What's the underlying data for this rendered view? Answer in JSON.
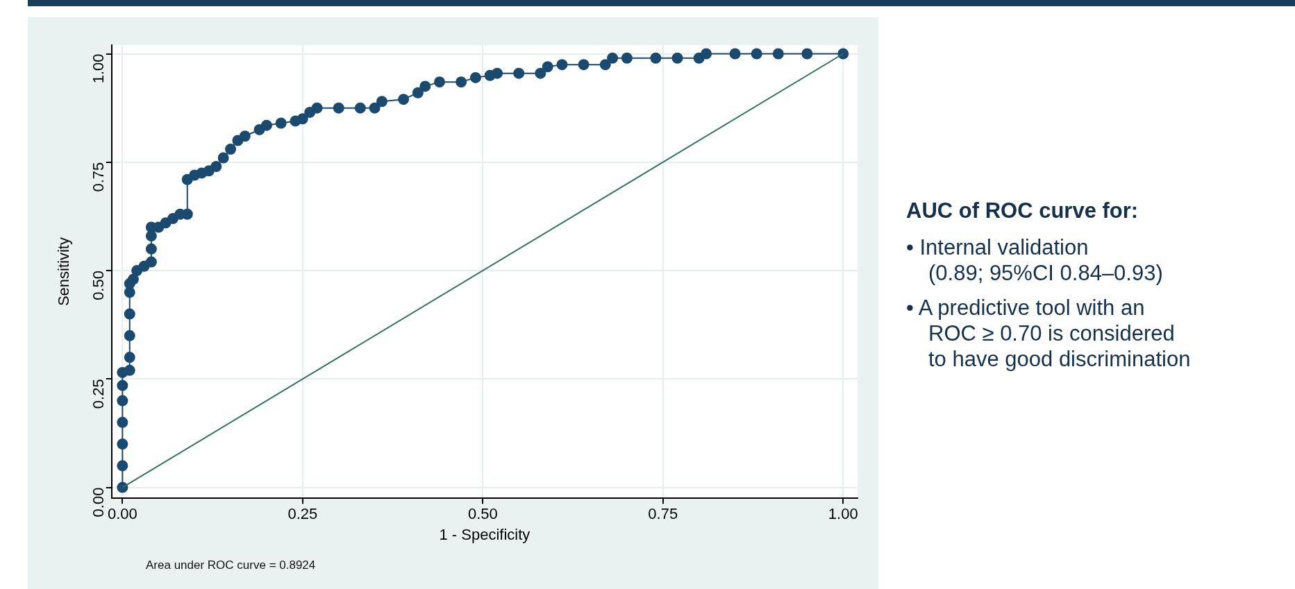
{
  "chart_data": {
    "type": "line",
    "xlabel": "1 - Specificity",
    "ylabel": "Sensitivity",
    "xlim": [
      -0.015,
      1.02
    ],
    "ylim": [
      -0.025,
      1.02
    ],
    "xticks": [
      {
        "value": 0,
        "label": "0.00"
      },
      {
        "value": 0.25,
        "label": "0.25"
      },
      {
        "value": 0.5,
        "label": "0.50"
      },
      {
        "value": 0.75,
        "label": "0.75"
      },
      {
        "value": 1,
        "label": "1.00"
      }
    ],
    "yticks": [
      {
        "value": 0,
        "label": "0.00"
      },
      {
        "value": 0.25,
        "label": "0.25"
      },
      {
        "value": 0.5,
        "label": "0.50"
      },
      {
        "value": 0.75,
        "label": "0.75"
      },
      {
        "value": 1,
        "label": "1.00"
      }
    ],
    "grid": true,
    "legend": false,
    "series": [
      {
        "color": "#1b4a6e",
        "marker": "circle",
        "x": [
          0,
          0,
          0,
          0,
          0,
          0,
          0,
          0.01,
          0.01,
          0.01,
          0.01,
          0.01,
          0.01,
          0.015,
          0.02,
          0.03,
          0.04,
          0.04,
          0.04,
          0.04,
          0.05,
          0.06,
          0.07,
          0.08,
          0.09,
          0.09,
          0.1,
          0.11,
          0.12,
          0.13,
          0.14,
          0.15,
          0.16,
          0.17,
          0.19,
          0.2,
          0.22,
          0.24,
          0.25,
          0.26,
          0.27,
          0.3,
          0.33,
          0.35,
          0.36,
          0.39,
          0.41,
          0.42,
          0.44,
          0.47,
          0.49,
          0.51,
          0.52,
          0.55,
          0.58,
          0.59,
          0.61,
          0.64,
          0.67,
          0.68,
          0.7,
          0.74,
          0.77,
          0.8,
          0.81,
          0.85,
          0.88,
          0.91,
          0.95,
          1
        ],
        "values": [
          0,
          0.05,
          0.1,
          0.15,
          0.2,
          0.235,
          0.265,
          0.27,
          0.3,
          0.35,
          0.4,
          0.45,
          0.47,
          0.48,
          0.5,
          0.51,
          0.52,
          0.55,
          0.58,
          0.6,
          0.6,
          0.61,
          0.62,
          0.63,
          0.63,
          0.71,
          0.72,
          0.725,
          0.73,
          0.74,
          0.76,
          0.78,
          0.8,
          0.81,
          0.825,
          0.835,
          0.84,
          0.845,
          0.85,
          0.865,
          0.875,
          0.875,
          0.875,
          0.875,
          0.89,
          0.895,
          0.91,
          0.925,
          0.935,
          0.935,
          0.945,
          0.95,
          0.955,
          0.955,
          0.955,
          0.97,
          0.975,
          0.975,
          0.975,
          0.99,
          0.99,
          0.99,
          0.99,
          0.99,
          1,
          1,
          1,
          1,
          1,
          1
        ]
      },
      {
        "color": "#2f6f5e",
        "marker": "none",
        "x": [
          0,
          1
        ],
        "values": [
          0,
          1
        ]
      }
    ],
    "annotations": [
      "Area under ROC curve = 0.8924",
      "AUC of ROC curve for:",
      "• Internal validation\n(0.89; 95%CI 0.84–0.93)",
      "• A predictive tool with an\nROC ≥ 0.70 is considered\nto have good discrimination"
    ]
  }
}
